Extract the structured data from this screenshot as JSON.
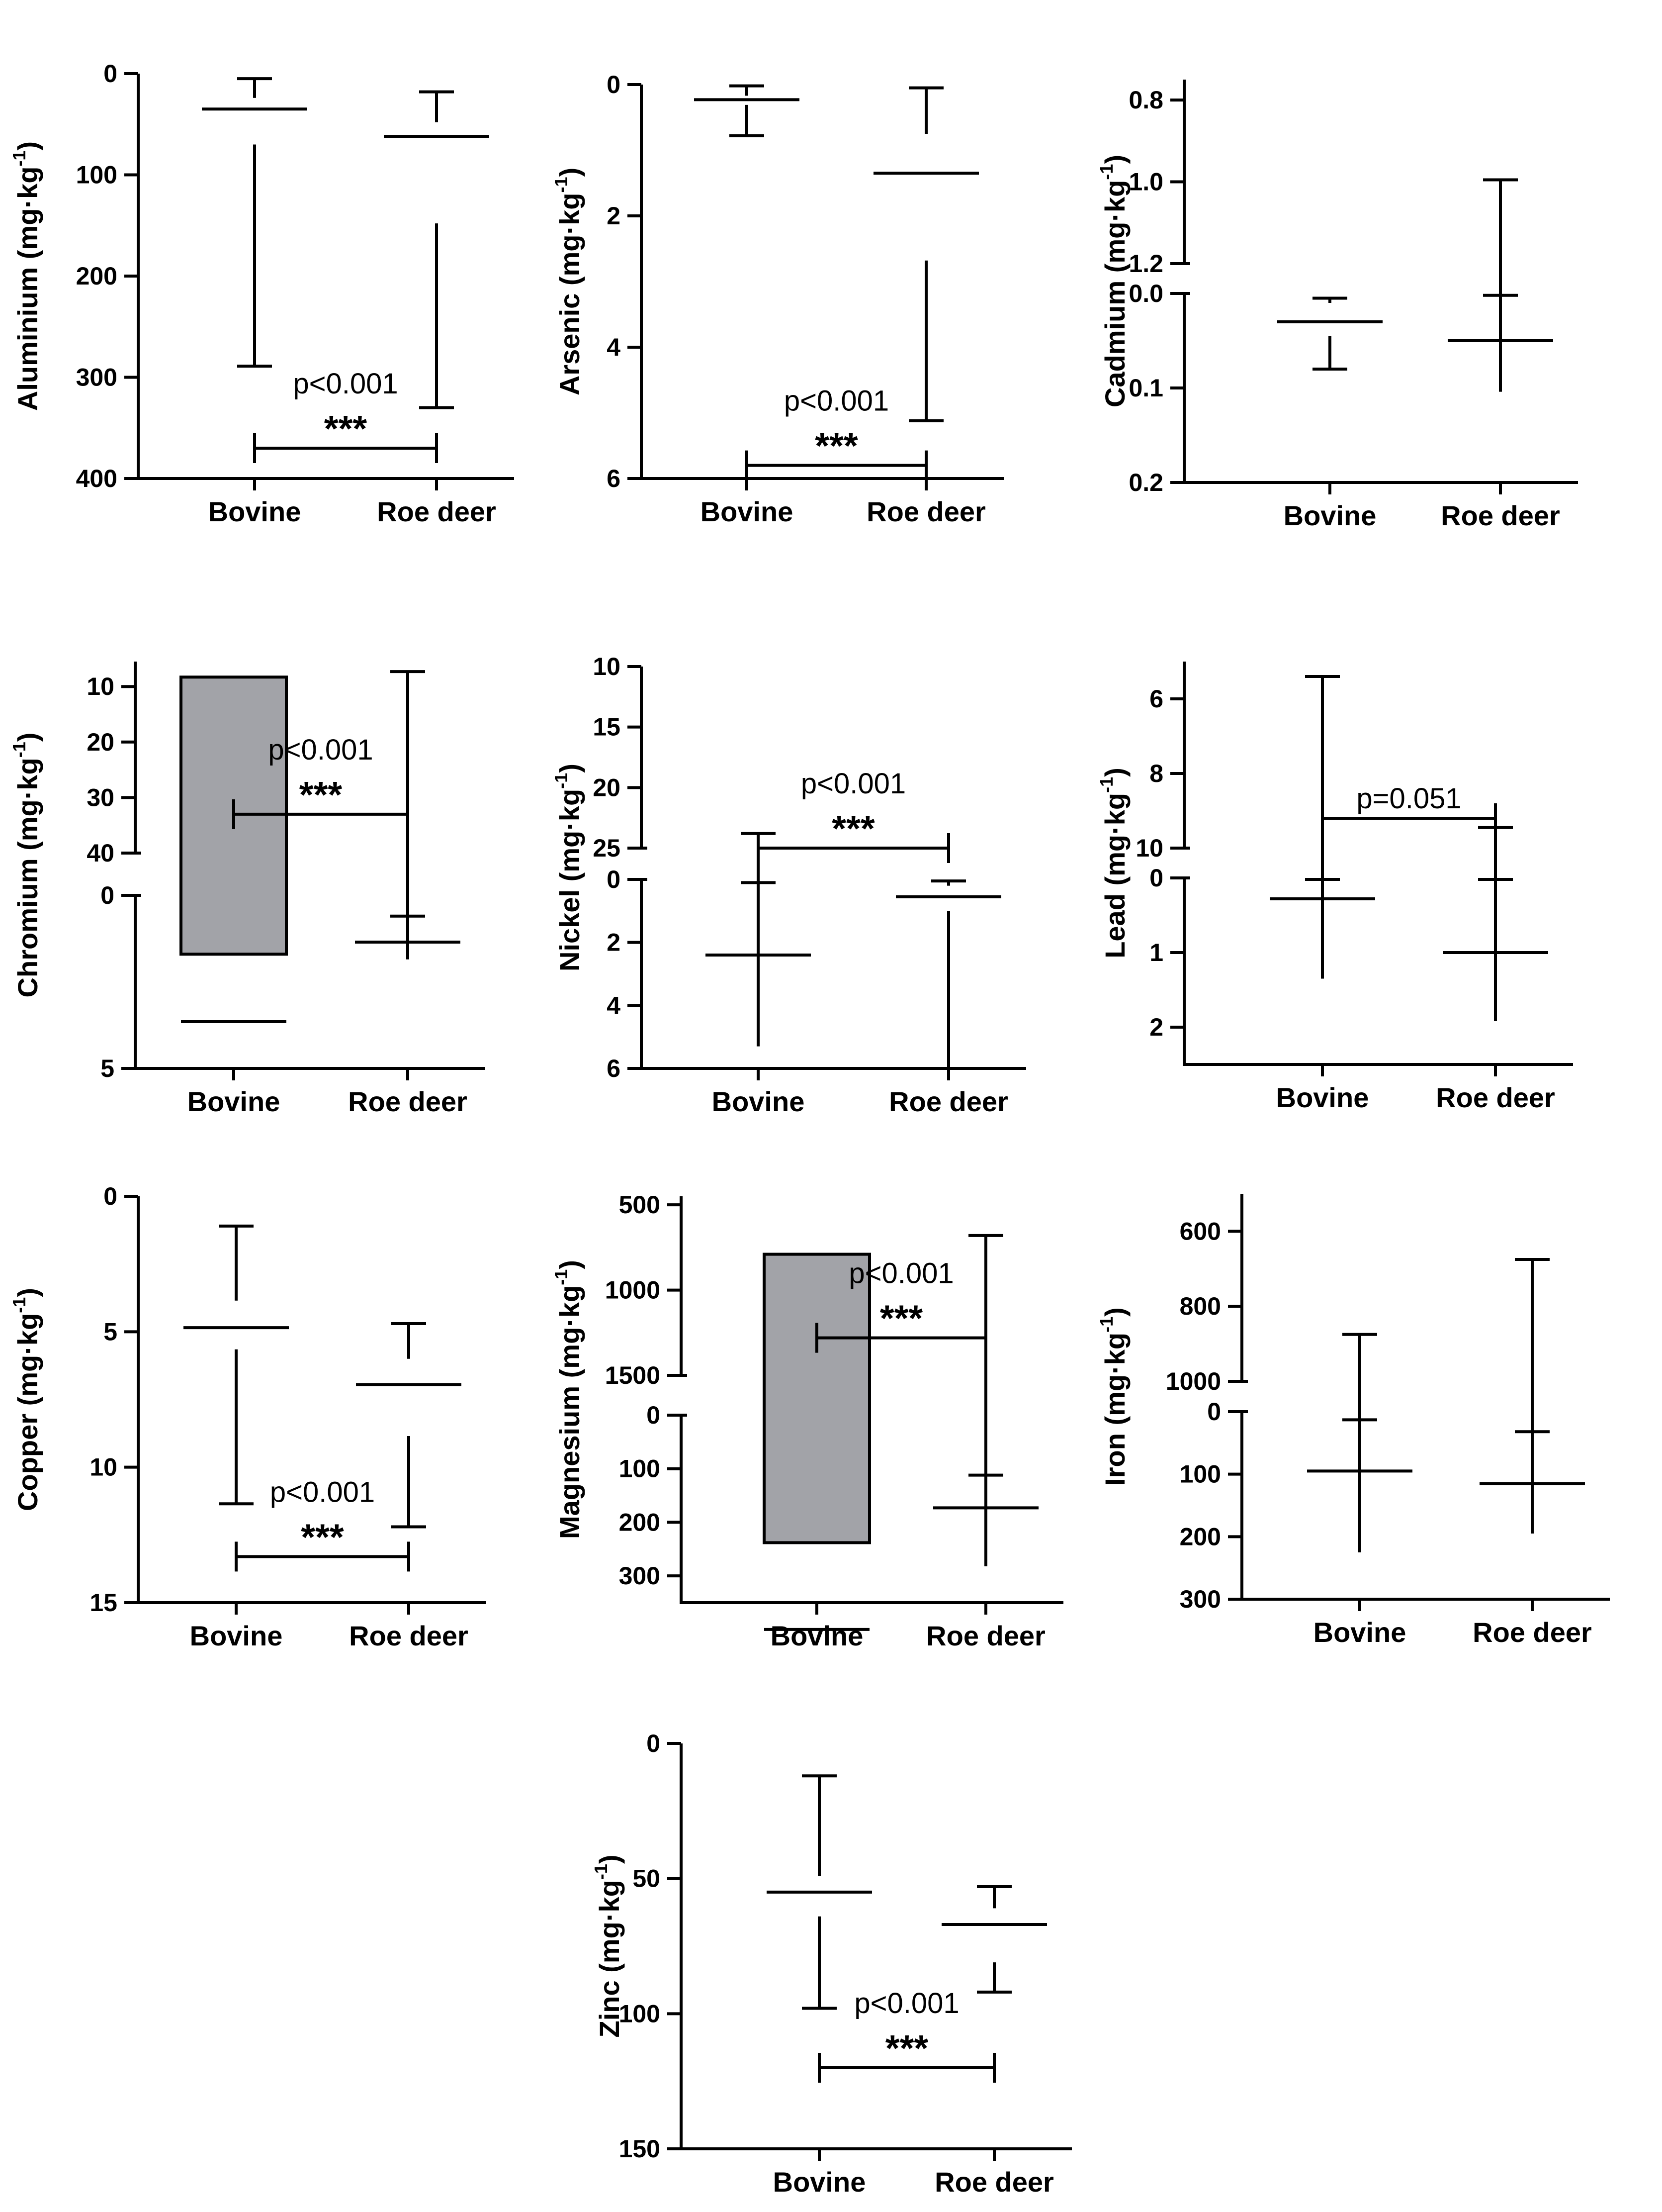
{
  "colors": {
    "bovine_fill": "#a2a3a8",
    "roe_deer_fill": "#ffffff",
    "stroke": "#000000"
  },
  "figure_caption": "",
  "chart_data": [
    {
      "type": "box",
      "id": "aluminium",
      "ylabel": "Aluminium (mg·kg",
      "ylabel_sup": "-1",
      "ylabel_suffix": ")",
      "categories": [
        "Bovine",
        "Roe deer"
      ],
      "ylim": [
        0,
        400
      ],
      "yticks": [
        {
          "v": 0,
          "t": "0"
        },
        {
          "v": 100,
          "t": "100"
        },
        {
          "v": 200,
          "t": "200"
        },
        {
          "v": 300,
          "t": "300"
        },
        {
          "v": 400,
          "t": "400"
        }
      ],
      "segments": [
        [
          0,
          400
        ]
      ],
      "boxes": [
        {
          "group": "Bovine",
          "min": 5,
          "q1": 24,
          "median": 35,
          "q3": 70,
          "max": 289
        },
        {
          "group": "Roe deer",
          "min": 18,
          "q1": 48,
          "median": 62,
          "q3": 148,
          "max": 330
        }
      ],
      "p_value": "p<0.001",
      "significance": "***",
      "bracket_y": 370
    },
    {
      "type": "box",
      "id": "arsenic",
      "ylabel": "Arsenic (mg·kg",
      "ylabel_sup": "-1",
      "ylabel_suffix": ")",
      "categories": [
        "Bovine",
        "Roe deer"
      ],
      "ylim": [
        0,
        6
      ],
      "yticks": [
        {
          "v": 0,
          "t": "0"
        },
        {
          "v": 2,
          "t": "2"
        },
        {
          "v": 4,
          "t": "4"
        },
        {
          "v": 6,
          "t": "6"
        }
      ],
      "segments": [
        [
          0,
          6
        ]
      ],
      "boxes": [
        {
          "group": "Bovine",
          "min": 0.02,
          "q1": 0.17,
          "median": 0.23,
          "q3": 0.31,
          "max": 0.78
        },
        {
          "group": "Roe deer",
          "min": 0.05,
          "q1": 0.75,
          "median": 1.35,
          "q3": 2.68,
          "max": 5.12
        }
      ],
      "p_value": "p<0.001",
      "significance": "***",
      "bracket_y": 5.8
    },
    {
      "type": "box",
      "id": "cadmium",
      "ylabel": "Cadmium (mg·kg",
      "ylabel_sup": "-1",
      "ylabel_suffix": ")",
      "categories": [
        "Bovine",
        "Roe deer"
      ],
      "ylim": [
        0,
        1.2
      ],
      "yticks": [
        {
          "v": 0,
          "t": "0.0"
        },
        {
          "v": 0.1,
          "t": "0.1"
        },
        {
          "v": 0.2,
          "t": "0.2"
        },
        {
          "v": 0.8,
          "t": "0.8"
        },
        {
          "v": 1.0,
          "t": "1.0"
        },
        {
          "v": 1.2,
          "t": "1.2"
        }
      ],
      "segments": [
        [
          0,
          0.2
        ],
        [
          0.75,
          1.2
        ]
      ],
      "boxes": [
        {
          "group": "Bovine",
          "min": 0.005,
          "q1": 0.01,
          "median": 0.03,
          "q3": 0.045,
          "max": 0.08
        },
        {
          "group": "Roe deer",
          "min": 0.002,
          "q1": 0.003,
          "median": 0.05,
          "q3": 0.104,
          "max": 0.995
        }
      ],
      "p_value": "",
      "significance": ""
    },
    {
      "type": "box",
      "id": "chromium",
      "ylabel": "Chromium (mg·kg",
      "ylabel_sup": "-1",
      "ylabel_suffix": ")",
      "categories": [
        "Bovine",
        "Roe deer"
      ],
      "ylim": [
        0,
        40
      ],
      "yticks": [
        {
          "v": 0,
          "t": "0"
        },
        {
          "v": 5,
          "t": "5"
        },
        {
          "v": 10,
          "t": "10"
        },
        {
          "v": 20,
          "t": "20"
        },
        {
          "v": 30,
          "t": "30"
        },
        {
          "v": 40,
          "t": "40"
        }
      ],
      "segments": [
        [
          0,
          5
        ],
        [
          5.5,
          40
        ]
      ],
      "boxes": [
        {
          "group": "Bovine",
          "min": 0.2,
          "q1": 1.7,
          "median": 3.65,
          "q3": 8.3,
          "max": 37
        },
        {
          "group": "Roe deer",
          "min": 0.6,
          "q1": 1.1,
          "median": 1.35,
          "q3": 1.85,
          "max": 7.3
        }
      ],
      "p_value": "p<0.001",
      "significance": "***",
      "bracket_y": 33
    },
    {
      "type": "box",
      "id": "nickel",
      "ylabel": "Nickel (mg·kg",
      "ylabel_sup": "-1",
      "ylabel_suffix": ")",
      "categories": [
        "Bovine",
        "Roe deer"
      ],
      "ylim": [
        0,
        25
      ],
      "yticks": [
        {
          "v": 0,
          "t": "0"
        },
        {
          "v": 2,
          "t": "2"
        },
        {
          "v": 4,
          "t": "4"
        },
        {
          "v": 6,
          "t": "6"
        },
        {
          "v": 10,
          "t": "10"
        },
        {
          "v": 15,
          "t": "15"
        },
        {
          "v": 20,
          "t": "20"
        },
        {
          "v": 25,
          "t": "25"
        }
      ],
      "segments": [
        [
          0,
          6
        ],
        [
          10,
          25
        ]
      ],
      "boxes": [
        {
          "group": "Bovine",
          "min": 0.1,
          "q1": 1.1,
          "median": 2.4,
          "q3": 5.3,
          "max": 23.8
        },
        {
          "group": "Roe deer",
          "min": 0.05,
          "q1": 0.2,
          "median": 0.55,
          "q3": 1.0,
          "max": 6.0
        }
      ],
      "p_value": "p<0.001",
      "significance": "***",
      "bracket_y": 25
    },
    {
      "type": "box",
      "id": "lead",
      "ylabel": "Lead (mg·kg",
      "ylabel_sup": "-1",
      "ylabel_suffix": ")",
      "categories": [
        "Bovine",
        "Roe deer"
      ],
      "ylim": [
        0,
        10
      ],
      "yticks": [
        {
          "v": 0,
          "t": "0"
        },
        {
          "v": 1,
          "t": "1"
        },
        {
          "v": 2,
          "t": "2"
        },
        {
          "v": 6,
          "t": "6"
        },
        {
          "v": 8,
          "t": "8"
        },
        {
          "v": 10,
          "t": "10"
        }
      ],
      "segments": [
        [
          0,
          2.5
        ],
        [
          5,
          10
        ]
      ],
      "boxes": [
        {
          "group": "Bovine",
          "min": 0.02,
          "q1": 0.15,
          "median": 0.28,
          "q3": 1.35,
          "max": 5.4
        },
        {
          "group": "Roe deer",
          "min": 0.02,
          "q1": 0.47,
          "median": 1.0,
          "q3": 1.92,
          "max": 9.45
        }
      ],
      "p_value": "p=0.051",
      "significance": "",
      "bracket_y": 9.2
    },
    {
      "type": "box",
      "id": "copper",
      "ylabel": "Copper (mg·kg",
      "ylabel_sup": "-1",
      "ylabel_suffix": ")",
      "categories": [
        "Bovine",
        "Roe deer"
      ],
      "ylim": [
        0,
        15
      ],
      "yticks": [
        {
          "v": 0,
          "t": "0"
        },
        {
          "v": 5,
          "t": "5"
        },
        {
          "v": 10,
          "t": "10"
        },
        {
          "v": 15,
          "t": "15"
        }
      ],
      "segments": [
        [
          0,
          15
        ]
      ],
      "boxes": [
        {
          "group": "Bovine",
          "min": 1.1,
          "q1": 3.85,
          "median": 4.85,
          "q3": 5.65,
          "max": 11.35
        },
        {
          "group": "Roe deer",
          "min": 4.7,
          "q1": 6.0,
          "median": 6.95,
          "q3": 8.85,
          "max": 12.2
        }
      ],
      "p_value": "p<0.001",
      "significance": "***",
      "bracket_y": 13.3
    },
    {
      "type": "box",
      "id": "magnesium",
      "ylabel": "Magnesium (mg·kg",
      "ylabel_sup": "-1",
      "ylabel_suffix": ")",
      "categories": [
        "Bovine",
        "Roe deer"
      ],
      "ylim": [
        0,
        1500
      ],
      "yticks": [
        {
          "v": 0,
          "t": "0"
        },
        {
          "v": 100,
          "t": "100"
        },
        {
          "v": 200,
          "t": "200"
        },
        {
          "v": 300,
          "t": "300"
        },
        {
          "v": 500,
          "t": "500"
        },
        {
          "v": 1000,
          "t": "1000"
        },
        {
          "v": 1500,
          "t": "1500"
        }
      ],
      "segments": [
        [
          0,
          350
        ],
        [
          450,
          1500
        ]
      ],
      "boxes": [
        {
          "group": "Bovine",
          "min": 60,
          "q1": 238,
          "median": 400,
          "q3": 790,
          "max": 1100
        },
        {
          "group": "Roe deer",
          "min": 112,
          "q1": 148,
          "median": 173,
          "q3": 282,
          "max": 680
        }
      ],
      "p_value": "p<0.001",
      "significance": "***",
      "bracket_y": 1280
    },
    {
      "type": "box",
      "id": "iron",
      "ylabel": "Iron (mg·kg",
      "ylabel_sup": "-1",
      "ylabel_suffix": ")",
      "categories": [
        "Bovine",
        "Roe deer"
      ],
      "ylim": [
        0,
        1000
      ],
      "yticks": [
        {
          "v": 0,
          "t": "0"
        },
        {
          "v": 100,
          "t": "100"
        },
        {
          "v": 200,
          "t": "200"
        },
        {
          "v": 300,
          "t": "300"
        },
        {
          "v": 600,
          "t": "600"
        },
        {
          "v": 800,
          "t": "800"
        },
        {
          "v": 1000,
          "t": "1000"
        }
      ],
      "segments": [
        [
          0,
          300
        ],
        [
          500,
          1000
        ]
      ],
      "boxes": [
        {
          "group": "Bovine",
          "min": 13,
          "q1": 65,
          "median": 95,
          "q3": 225,
          "max": 875
        },
        {
          "group": "Roe deer",
          "min": 32,
          "q1": 55,
          "median": 115,
          "q3": 195,
          "max": 675
        }
      ],
      "p_value": "",
      "significance": ""
    },
    {
      "type": "box",
      "id": "zinc",
      "ylabel": "Zinc (mg·kg",
      "ylabel_sup": "-1",
      "ylabel_suffix": ")",
      "categories": [
        "Bovine",
        "Roe deer"
      ],
      "ylim": [
        0,
        150
      ],
      "yticks": [
        {
          "v": 0,
          "t": "0"
        },
        {
          "v": 50,
          "t": "50"
        },
        {
          "v": 100,
          "t": "100"
        },
        {
          "v": 150,
          "t": "150"
        }
      ],
      "segments": [
        [
          0,
          150
        ]
      ],
      "boxes": [
        {
          "group": "Bovine",
          "min": 12,
          "q1": 49,
          "median": 55,
          "q3": 64,
          "max": 98
        },
        {
          "group": "Roe deer",
          "min": 53,
          "q1": 61,
          "median": 67,
          "q3": 81,
          "max": 92
        }
      ],
      "p_value": "p<0.001",
      "significance": "***",
      "bracket_y": 120
    }
  ]
}
